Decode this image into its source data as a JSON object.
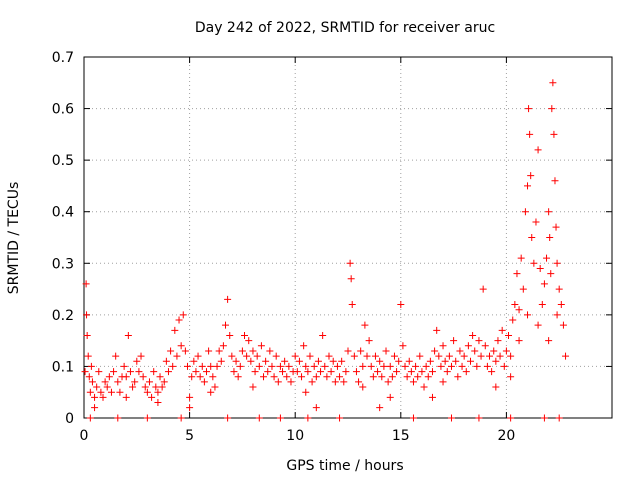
{
  "chart_data": {
    "type": "scatter",
    "title": "Day 242 of 2022, SRMTID for receiver aruc",
    "xlabel": "GPS time / hours",
    "ylabel": "SRMTID / TECUs",
    "xlim": [
      0,
      25
    ],
    "ylim": [
      0,
      0.7
    ],
    "xticks": [
      0,
      5,
      10,
      15,
      20
    ],
    "yticks": [
      0,
      0.1,
      0.2,
      0.3,
      0.4,
      0.5,
      0.6,
      0.7
    ],
    "xtick_labels": [
      "0",
      "5",
      "10",
      "15",
      "20"
    ],
    "ytick_labels": [
      "0",
      "0.1",
      "0.2",
      "0.3",
      "0.4",
      "0.5",
      "0.6",
      "0.7"
    ],
    "grid": true,
    "marker": "+",
    "color": "#ff0000",
    "series": [
      {
        "name": "SRMTID",
        "points": [
          [
            0.05,
            0.09
          ],
          [
            0.1,
            0.26
          ],
          [
            0.12,
            0.2
          ],
          [
            0.15,
            0.16
          ],
          [
            0.2,
            0.12
          ],
          [
            0.25,
            0.08
          ],
          [
            0.3,
            0.05
          ],
          [
            0.35,
            0.1
          ],
          [
            0.4,
            0.07
          ],
          [
            0.5,
            0.04
          ],
          [
            0.6,
            0.06
          ],
          [
            0.7,
            0.09
          ],
          [
            0.8,
            0.05
          ],
          [
            0.9,
            0.04
          ],
          [
            1.0,
            0.07
          ],
          [
            1.1,
            0.06
          ],
          [
            1.2,
            0.08
          ],
          [
            1.3,
            0.05
          ],
          [
            1.4,
            0.09
          ],
          [
            1.5,
            0.12
          ],
          [
            1.6,
            0.07
          ],
          [
            1.7,
            0.05
          ],
          [
            1.8,
            0.08
          ],
          [
            1.9,
            0.1
          ],
          [
            2.0,
            0.08
          ],
          [
            2.1,
            0.16
          ],
          [
            2.2,
            0.09
          ],
          [
            2.3,
            0.06
          ],
          [
            2.4,
            0.07
          ],
          [
            2.5,
            0.11
          ],
          [
            2.6,
            0.09
          ],
          [
            2.7,
            0.12
          ],
          [
            2.8,
            0.08
          ],
          [
            2.9,
            0.06
          ],
          [
            3.0,
            0.05
          ],
          [
            3.1,
            0.07
          ],
          [
            3.2,
            0.04
          ],
          [
            3.3,
            0.09
          ],
          [
            3.4,
            0.06
          ],
          [
            3.5,
            0.05
          ],
          [
            3.6,
            0.08
          ],
          [
            3.7,
            0.06
          ],
          [
            3.8,
            0.07
          ],
          [
            3.9,
            0.11
          ],
          [
            4.0,
            0.09
          ],
          [
            4.1,
            0.13
          ],
          [
            4.2,
            0.1
          ],
          [
            4.3,
            0.17
          ],
          [
            4.4,
            0.12
          ],
          [
            4.5,
            0.19
          ],
          [
            4.6,
            0.14
          ],
          [
            4.7,
            0.2
          ],
          [
            4.8,
            0.13
          ],
          [
            4.9,
            0.1
          ],
          [
            5.0,
            0.04
          ],
          [
            5.1,
            0.08
          ],
          [
            5.2,
            0.11
          ],
          [
            5.3,
            0.09
          ],
          [
            5.4,
            0.12
          ],
          [
            5.5,
            0.08
          ],
          [
            5.6,
            0.1
          ],
          [
            5.7,
            0.07
          ],
          [
            5.8,
            0.09
          ],
          [
            5.9,
            0.13
          ],
          [
            6.0,
            0.1
          ],
          [
            6.1,
            0.08
          ],
          [
            6.2,
            0.06
          ],
          [
            6.3,
            0.1
          ],
          [
            6.4,
            0.13
          ],
          [
            6.5,
            0.11
          ],
          [
            6.6,
            0.14
          ],
          [
            6.7,
            0.18
          ],
          [
            6.8,
            0.23
          ],
          [
            6.9,
            0.16
          ],
          [
            7.0,
            0.12
          ],
          [
            7.1,
            0.09
          ],
          [
            7.2,
            0.11
          ],
          [
            7.3,
            0.08
          ],
          [
            7.4,
            0.1
          ],
          [
            7.5,
            0.13
          ],
          [
            7.6,
            0.16
          ],
          [
            7.7,
            0.12
          ],
          [
            7.8,
            0.15
          ],
          [
            7.9,
            0.11
          ],
          [
            8.0,
            0.13
          ],
          [
            8.1,
            0.09
          ],
          [
            8.2,
            0.12
          ],
          [
            8.3,
            0.1
          ],
          [
            8.4,
            0.14
          ],
          [
            8.5,
            0.08
          ],
          [
            8.6,
            0.11
          ],
          [
            8.7,
            0.09
          ],
          [
            8.8,
            0.13
          ],
          [
            8.9,
            0.1
          ],
          [
            9.0,
            0.08
          ],
          [
            9.1,
            0.12
          ],
          [
            9.2,
            0.07
          ],
          [
            9.3,
            0.1
          ],
          [
            9.4,
            0.09
          ],
          [
            9.5,
            0.11
          ],
          [
            9.6,
            0.08
          ],
          [
            9.7,
            0.1
          ],
          [
            9.8,
            0.07
          ],
          [
            9.9,
            0.09
          ],
          [
            10.0,
            0.12
          ],
          [
            10.1,
            0.09
          ],
          [
            10.2,
            0.11
          ],
          [
            10.3,
            0.08
          ],
          [
            10.4,
            0.14
          ],
          [
            10.5,
            0.1
          ],
          [
            10.6,
            0.09
          ],
          [
            10.7,
            0.12
          ],
          [
            10.8,
            0.07
          ],
          [
            10.9,
            0.1
          ],
          [
            11.0,
            0.08
          ],
          [
            11.1,
            0.11
          ],
          [
            11.2,
            0.09
          ],
          [
            11.3,
            0.16
          ],
          [
            11.4,
            0.1
          ],
          [
            11.5,
            0.08
          ],
          [
            11.6,
            0.12
          ],
          [
            11.7,
            0.09
          ],
          [
            11.8,
            0.11
          ],
          [
            11.9,
            0.07
          ],
          [
            12.0,
            0.1
          ],
          [
            12.1,
            0.08
          ],
          [
            12.2,
            0.11
          ],
          [
            12.3,
            0.07
          ],
          [
            12.4,
            0.09
          ],
          [
            12.5,
            0.13
          ],
          [
            12.6,
            0.3
          ],
          [
            12.65,
            0.27
          ],
          [
            12.7,
            0.22
          ],
          [
            12.8,
            0.12
          ],
          [
            12.9,
            0.09
          ],
          [
            13.0,
            0.07
          ],
          [
            13.1,
            0.13
          ],
          [
            13.2,
            0.1
          ],
          [
            13.3,
            0.18
          ],
          [
            13.4,
            0.12
          ],
          [
            13.5,
            0.15
          ],
          [
            13.6,
            0.1
          ],
          [
            13.7,
            0.08
          ],
          [
            13.8,
            0.12
          ],
          [
            13.9,
            0.09
          ],
          [
            14.0,
            0.11
          ],
          [
            14.1,
            0.08
          ],
          [
            14.2,
            0.1
          ],
          [
            14.3,
            0.13
          ],
          [
            14.4,
            0.07
          ],
          [
            14.5,
            0.1
          ],
          [
            14.6,
            0.08
          ],
          [
            14.7,
            0.12
          ],
          [
            14.8,
            0.09
          ],
          [
            14.9,
            0.11
          ],
          [
            15.0,
            0.22
          ],
          [
            15.1,
            0.14
          ],
          [
            15.2,
            0.1
          ],
          [
            15.3,
            0.08
          ],
          [
            15.4,
            0.11
          ],
          [
            15.5,
            0.09
          ],
          [
            15.6,
            0.07
          ],
          [
            15.7,
            0.1
          ],
          [
            15.8,
            0.08
          ],
          [
            15.9,
            0.12
          ],
          [
            16.0,
            0.09
          ],
          [
            16.1,
            0.06
          ],
          [
            16.2,
            0.1
          ],
          [
            16.3,
            0.08
          ],
          [
            16.4,
            0.11
          ],
          [
            16.5,
            0.09
          ],
          [
            16.6,
            0.13
          ],
          [
            16.7,
            0.17
          ],
          [
            16.8,
            0.12
          ],
          [
            16.9,
            0.1
          ],
          [
            17.0,
            0.14
          ],
          [
            17.1,
            0.11
          ],
          [
            17.2,
            0.09
          ],
          [
            17.3,
            0.12
          ],
          [
            17.4,
            0.1
          ],
          [
            17.5,
            0.15
          ],
          [
            17.6,
            0.11
          ],
          [
            17.7,
            0.08
          ],
          [
            17.8,
            0.13
          ],
          [
            17.9,
            0.1
          ],
          [
            18.0,
            0.12
          ],
          [
            18.1,
            0.09
          ],
          [
            18.2,
            0.14
          ],
          [
            18.3,
            0.11
          ],
          [
            18.4,
            0.16
          ],
          [
            18.5,
            0.13
          ],
          [
            18.6,
            0.1
          ],
          [
            18.7,
            0.15
          ],
          [
            18.8,
            0.12
          ],
          [
            18.9,
            0.25
          ],
          [
            19.0,
            0.14
          ],
          [
            19.1,
            0.1
          ],
          [
            19.2,
            0.12
          ],
          [
            19.3,
            0.09
          ],
          [
            19.4,
            0.13
          ],
          [
            19.5,
            0.11
          ],
          [
            19.6,
            0.15
          ],
          [
            19.7,
            0.12
          ],
          [
            19.8,
            0.17
          ],
          [
            19.9,
            0.1
          ],
          [
            20.0,
            0.13
          ],
          [
            20.1,
            0.16
          ],
          [
            20.2,
            0.12
          ],
          [
            20.3,
            0.19
          ],
          [
            20.4,
            0.22
          ],
          [
            20.5,
            0.28
          ],
          [
            20.6,
            0.21
          ],
          [
            20.7,
            0.31
          ],
          [
            20.8,
            0.25
          ],
          [
            20.9,
            0.4
          ],
          [
            21.0,
            0.45
          ],
          [
            21.05,
            0.6
          ],
          [
            21.1,
            0.55
          ],
          [
            21.15,
            0.47
          ],
          [
            21.2,
            0.35
          ],
          [
            21.3,
            0.3
          ],
          [
            21.4,
            0.38
          ],
          [
            21.5,
            0.52
          ],
          [
            21.6,
            0.29
          ],
          [
            21.7,
            0.22
          ],
          [
            21.8,
            0.26
          ],
          [
            21.9,
            0.31
          ],
          [
            22.0,
            0.4
          ],
          [
            22.05,
            0.35
          ],
          [
            22.1,
            0.28
          ],
          [
            22.15,
            0.6
          ],
          [
            22.2,
            0.65
          ],
          [
            22.25,
            0.55
          ],
          [
            22.3,
            0.46
          ],
          [
            22.35,
            0.37
          ],
          [
            22.4,
            0.3
          ],
          [
            22.5,
            0.25
          ],
          [
            22.6,
            0.22
          ],
          [
            22.7,
            0.18
          ],
          [
            22.8,
            0.12
          ],
          [
            20.6,
            0.15
          ],
          [
            21.0,
            0.2
          ],
          [
            21.5,
            0.18
          ],
          [
            22.0,
            0.15
          ],
          [
            22.4,
            0.2
          ],
          [
            20.2,
            0.08
          ],
          [
            19.5,
            0.06
          ],
          [
            17.0,
            0.07
          ],
          [
            14.5,
            0.04
          ],
          [
            13.2,
            0.06
          ],
          [
            10.5,
            0.05
          ],
          [
            8.0,
            0.06
          ],
          [
            6.0,
            0.05
          ],
          [
            3.5,
            0.03
          ],
          [
            2.0,
            0.04
          ],
          [
            0.5,
            0.02
          ],
          [
            5.0,
            0.02
          ],
          [
            11.0,
            0.02
          ],
          [
            14.0,
            0.02
          ],
          [
            16.5,
            0.04
          ],
          [
            0.3,
            0.0
          ],
          [
            1.6,
            0.0
          ],
          [
            3.0,
            0.0
          ],
          [
            4.6,
            0.0
          ],
          [
            6.8,
            0.0
          ],
          [
            8.3,
            0.0
          ],
          [
            9.3,
            0.0
          ],
          [
            10.6,
            0.0
          ],
          [
            12.1,
            0.0
          ],
          [
            15.6,
            0.0
          ],
          [
            17.4,
            0.0
          ],
          [
            18.7,
            0.0
          ],
          [
            20.2,
            0.0
          ],
          [
            21.8,
            0.0
          ],
          [
            22.5,
            0.0
          ]
        ]
      }
    ]
  }
}
